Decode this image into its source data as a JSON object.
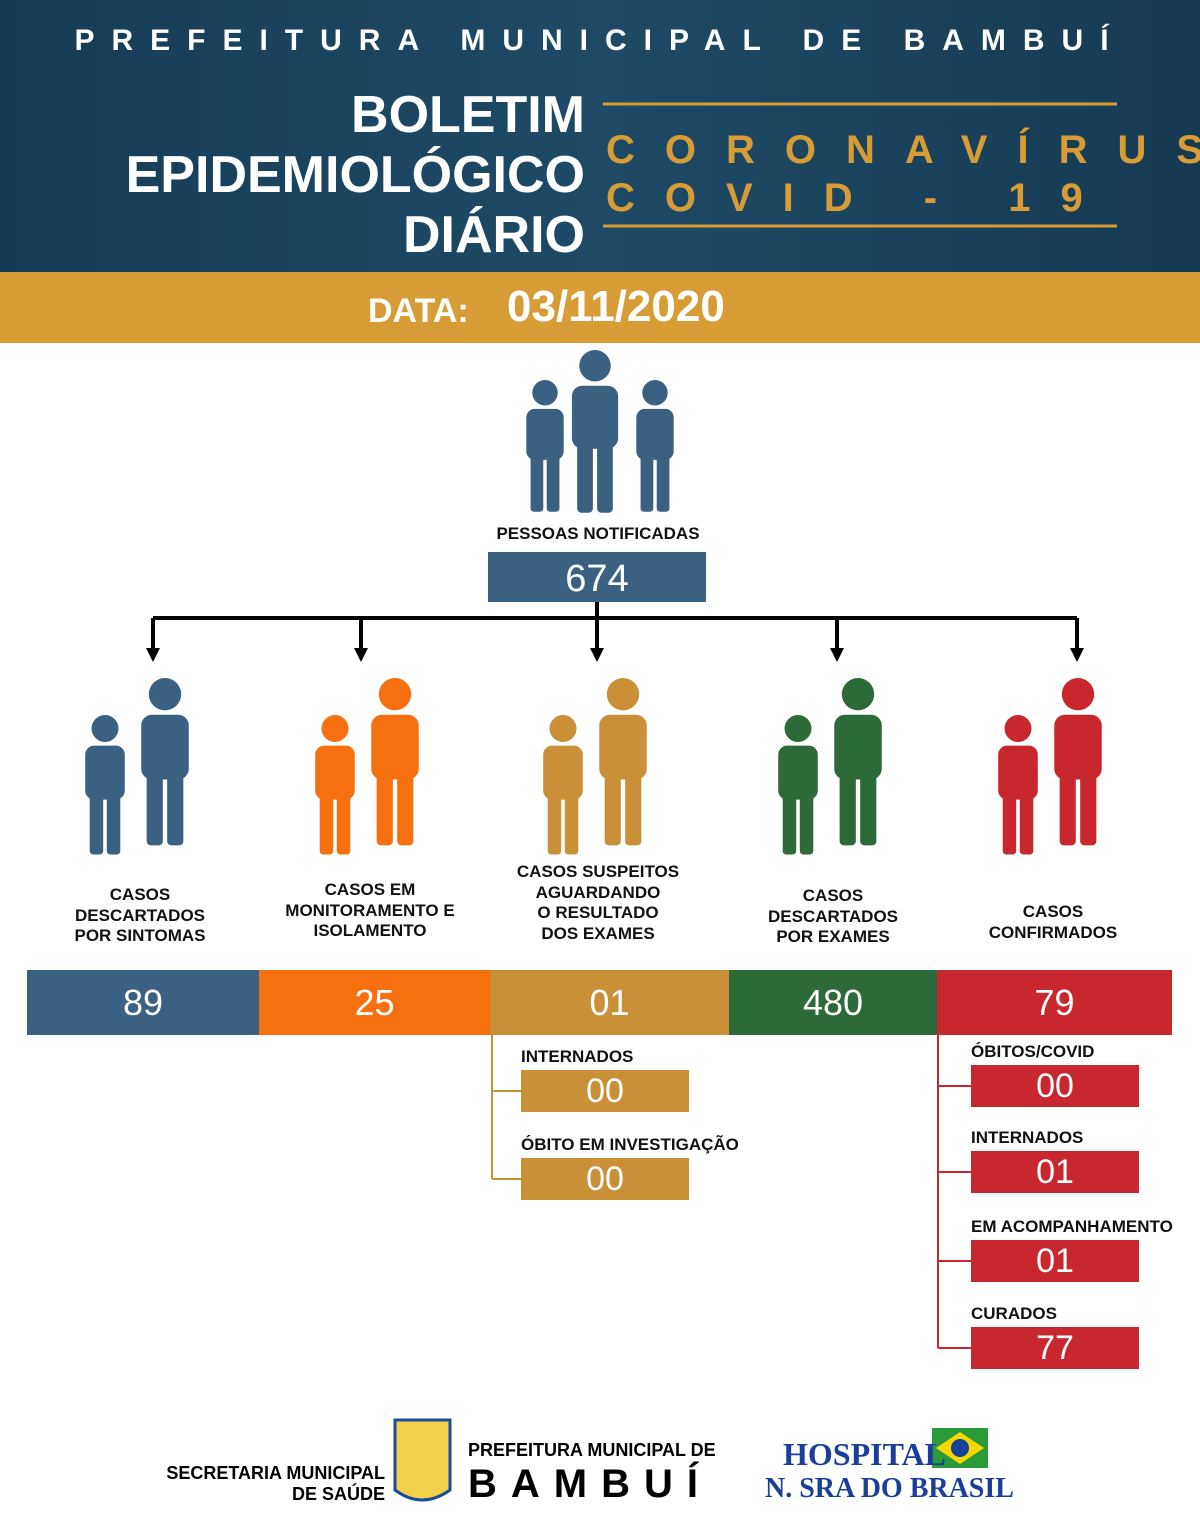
{
  "header": {
    "org": "PREFEITURA MUNICIPAL DE BAMBUÍ",
    "title": [
      "BOLETIM",
      "EPIDEMIOLÓGICO",
      "DIÁRIO"
    ],
    "subtitle": [
      "CORONAVÍRUS",
      "COVID - 19"
    ],
    "date_label": "DATA:",
    "date": "03/11/2020"
  },
  "notified": {
    "label": "PESSOAS NOTIFICADAS",
    "value": "674",
    "color": "#3b6182"
  },
  "categories": [
    {
      "label": [
        "CASOS",
        "DESCARTADOS",
        "POR SINTOMAS"
      ],
      "value": "89",
      "color": "#3b6182"
    },
    {
      "label": [
        "CASOS EM",
        "MONITORAMENTO E",
        "ISOLAMENTO"
      ],
      "value": "25",
      "color": "#f7700f"
    },
    {
      "label": [
        "CASOS SUSPEITOS",
        "AGUARDANDO",
        "O RESULTADO",
        "DOS EXAMES"
      ],
      "value": "01",
      "color": "#c99038"
    },
    {
      "label": [
        "CASOS",
        "DESCARTADOS",
        "POR EXAMES"
      ],
      "value": "480",
      "color": "#2d6a39"
    },
    {
      "label": [
        "CASOS",
        "CONFIRMADOS"
      ],
      "value": "79",
      "color": "#c8282d"
    }
  ],
  "suspect_details": [
    {
      "label": "INTERNADOS",
      "value": "00"
    },
    {
      "label": "ÓBITO EM INVESTIGAÇÃO",
      "value": "00"
    }
  ],
  "confirmed_details": [
    {
      "label": "ÓBITOS/COVID",
      "value": "00"
    },
    {
      "label": "INTERNADOS",
      "value": "01"
    },
    {
      "label": "EM ACOMPANHAMENTO",
      "value": "01"
    },
    {
      "label": "CURADOS",
      "value": "77"
    }
  ],
  "footer": {
    "secretaria": [
      "SECRETARIA MUNICIPAL",
      "DE SAÚDE"
    ],
    "prefeitura": "PREFEITURA MUNICIPAL DE",
    "city": "BAMBUÍ",
    "hospital": [
      "HOSPITAL",
      "N. SRA DO BRASIL"
    ]
  }
}
